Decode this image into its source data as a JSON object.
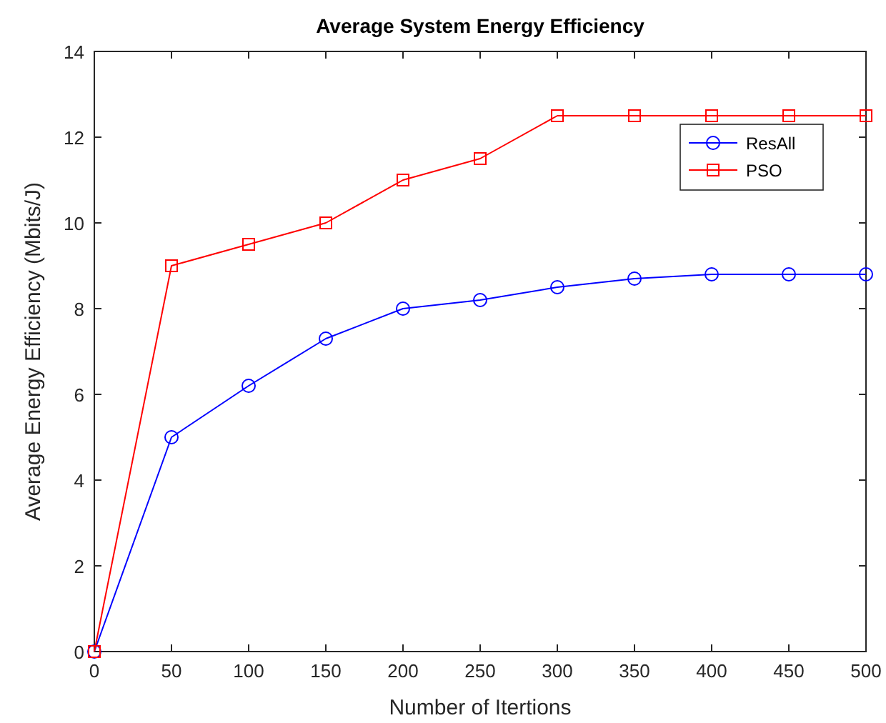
{
  "chart_data": {
    "type": "line",
    "title": "Average System Energy Efficiency",
    "xlabel": "Number of Itertions",
    "ylabel": "Average Energy Efficiency (Mbits/J)",
    "x": [
      0,
      50,
      100,
      150,
      200,
      250,
      300,
      350,
      400,
      450,
      500
    ],
    "series": [
      {
        "name": "ResAll",
        "color": "#0000ff",
        "marker": "circle",
        "values": [
          0,
          5,
          6.2,
          7.3,
          8,
          8.2,
          8.5,
          8.7,
          8.8,
          8.8,
          8.8
        ]
      },
      {
        "name": "PSO",
        "color": "#ff0000",
        "marker": "square",
        "values": [
          0,
          9,
          9.5,
          10,
          11,
          11.5,
          12.5,
          12.5,
          12.5,
          12.5,
          12.5
        ]
      }
    ],
    "xlim": [
      0,
      500
    ],
    "xticks": [
      0,
      50,
      100,
      150,
      200,
      250,
      300,
      350,
      400,
      450,
      500
    ],
    "ylim": [
      0,
      14
    ],
    "yticks": [
      0,
      2,
      4,
      6,
      8,
      10,
      12,
      14
    ],
    "grid": false,
    "legend": "top right",
    "line_style": "solid"
  }
}
